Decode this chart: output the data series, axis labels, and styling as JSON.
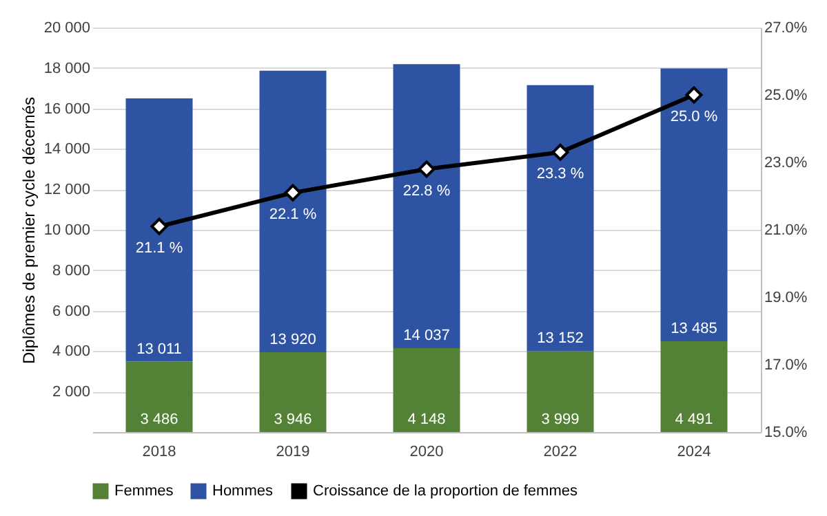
{
  "chart_data": {
    "type": "bar",
    "stacked": true,
    "ylabel": "Diplômes de premier cycle décernés",
    "categories": [
      "2018",
      "2019",
      "2020",
      "2022",
      "2024"
    ],
    "series": [
      {
        "name": "Femmes",
        "color": "#538135",
        "values": [
          3486,
          3946,
          4148,
          3999,
          4491
        ],
        "value_labels": [
          "3 486",
          "3 946",
          "4 148",
          "3 999",
          "4 491"
        ]
      },
      {
        "name": "Hommes",
        "color": "#2f53a3",
        "values": [
          13011,
          13920,
          14037,
          13152,
          13485
        ],
        "value_labels": [
          "13 011",
          "13 920",
          "14 037",
          "13 152",
          "13 485"
        ]
      },
      {
        "name": "Croissance de la proportion de femmes",
        "type": "line",
        "axis": "y2",
        "color": "#000000",
        "marker": "diamond",
        "line_style": "solid",
        "values": [
          21.1,
          22.1,
          22.8,
          23.3,
          25.0
        ],
        "value_labels": [
          "21.1 %",
          "22.1 %",
          "22.8 %",
          "23.3 %",
          "25.0 %"
        ]
      }
    ],
    "ylim": [
      0,
      20000
    ],
    "yticks": [
      {
        "value": 0,
        "label": null
      },
      {
        "value": 2000,
        "label": "2 000"
      },
      {
        "value": 4000,
        "label": "4 000"
      },
      {
        "value": 6000,
        "label": "6 000"
      },
      {
        "value": 8000,
        "label": "8 000"
      },
      {
        "value": 10000,
        "label": "10 000"
      },
      {
        "value": 12000,
        "label": "12 000"
      },
      {
        "value": 14000,
        "label": "14 000"
      },
      {
        "value": 16000,
        "label": "16 000"
      },
      {
        "value": 18000,
        "label": "18 000"
      },
      {
        "value": 20000,
        "label": "20 000"
      }
    ],
    "y2lim": [
      15,
      27
    ],
    "y2ticks": [
      {
        "value": 15,
        "label": "15.0%"
      },
      {
        "value": 17,
        "label": "17.0%"
      },
      {
        "value": 19,
        "label": "19.0%"
      },
      {
        "value": 21,
        "label": "21.0%"
      },
      {
        "value": 23,
        "label": "23.0%"
      },
      {
        "value": 25,
        "label": "25.0%"
      },
      {
        "value": 27,
        "label": "27.0%"
      }
    ],
    "grid": "y",
    "legend": "bottom"
  }
}
